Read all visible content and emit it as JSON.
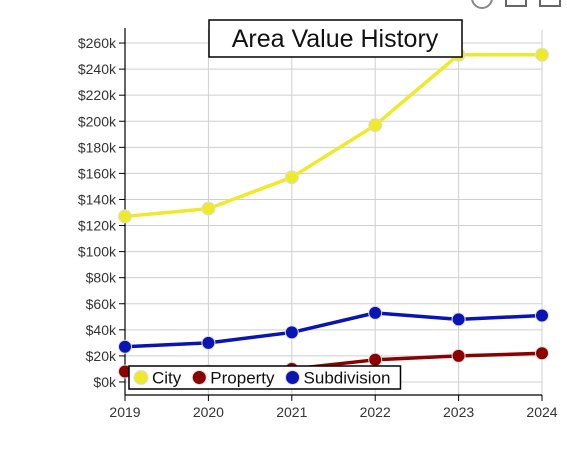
{
  "chart_data": {
    "type": "line",
    "title": "Area Value History",
    "xlabel": "",
    "ylabel": "",
    "categories": [
      "2019",
      "2020",
      "2021",
      "2022",
      "2023",
      "2024"
    ],
    "ylim": [
      -10000,
      270000
    ],
    "y_ticks": [
      0,
      20000,
      40000,
      60000,
      80000,
      100000,
      120000,
      140000,
      160000,
      180000,
      200000,
      220000,
      240000,
      260000
    ],
    "y_tick_labels": [
      "$0k",
      "$20k",
      "$40k",
      "$60k",
      "$80k",
      "$100k",
      "$120k",
      "$140k",
      "$160k",
      "$180k",
      "$200k",
      "$220k",
      "$240k",
      "$260k"
    ],
    "grid": true,
    "legend_position": "bottom-left",
    "series": [
      {
        "name": "City",
        "color": "#eeea2a",
        "values": [
          127000,
          133000,
          157000,
          197000,
          251000,
          251000
        ]
      },
      {
        "name": "Property",
        "color": "#8b0000",
        "values": [
          8000,
          8000,
          10000,
          17000,
          20000,
          22000
        ]
      },
      {
        "name": "Subdivision",
        "color": "#0a14b4",
        "values": [
          27000,
          30000,
          38000,
          53000,
          48000,
          51000
        ]
      }
    ]
  },
  "toolbar": {
    "icons": [
      "info-icon",
      "save-icon",
      "image-icon"
    ]
  }
}
